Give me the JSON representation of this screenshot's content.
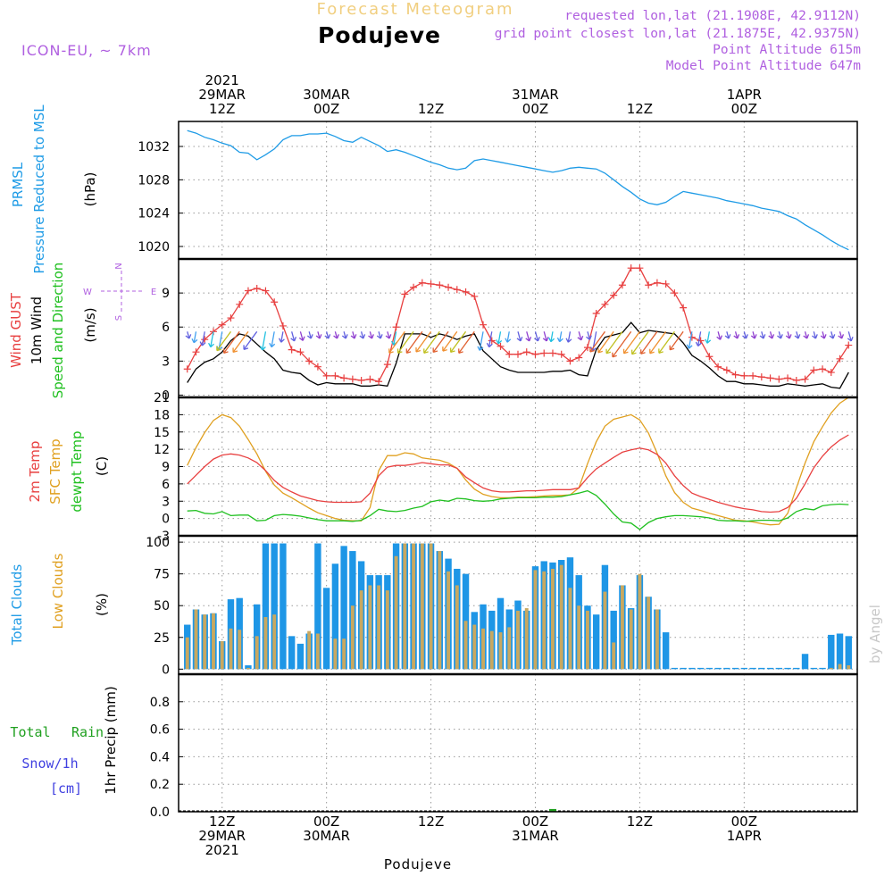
{
  "header": {
    "subtitle": "Forecast Meteogram",
    "title": "Podujeve",
    "model": "ICON-EU, ~ 7km",
    "requested": "requested lon,lat (21.1908E, 42.9112N)",
    "grid_point": "grid point closest lon,lat (21.1875E, 42.9375N)",
    "point_altitude": "Point Altitude 615m",
    "model_altitude": "Model Point Altitude 647m",
    "watermark": "by Angel",
    "footer": "Podujeve"
  },
  "time_axis": {
    "top_labels": [
      {
        "hour": 12,
        "lines": [
          "2021",
          "29MAR",
          "12Z"
        ]
      },
      {
        "hour": 24,
        "lines": [
          "30MAR",
          "00Z"
        ]
      },
      {
        "hour": 36,
        "lines": [
          "12Z"
        ]
      },
      {
        "hour": 48,
        "lines": [
          "31MAR",
          "00Z"
        ]
      },
      {
        "hour": 60,
        "lines": [
          "12Z"
        ]
      },
      {
        "hour": 72,
        "lines": [
          "1APR",
          "00Z"
        ]
      }
    ],
    "bottom_labels": [
      {
        "hour": 12,
        "lines": [
          "12Z",
          "29MAR",
          "2021"
        ]
      },
      {
        "hour": 24,
        "lines": [
          "00Z",
          "30MAR"
        ]
      },
      {
        "hour": 36,
        "lines": [
          "12Z"
        ]
      },
      {
        "hour": 48,
        "lines": [
          "00Z",
          "31MAR"
        ]
      },
      {
        "hour": 60,
        "lines": [
          "12Z"
        ]
      },
      {
        "hour": 72,
        "lines": [
          "00Z",
          "1APR"
        ]
      }
    ]
  },
  "panels": {
    "pressure": {
      "label_lines": [
        "PRMSL",
        "Pressure Reduced to MSL"
      ],
      "unit": "(hPa)"
    },
    "wind": {
      "label_lines": [
        "Wind GUST",
        "10m Wind",
        "Speed and Direction"
      ],
      "unit": "(m/s)",
      "compass": [
        "N",
        "W",
        "E",
        "S"
      ]
    },
    "temp": {
      "label_lines": [
        "2m Temp",
        "SFC Temp",
        "dewpt Temp"
      ],
      "unit": "(C)"
    },
    "clouds": {
      "label_lines": [
        "Total Clouds",
        "Low Clouds"
      ],
      "unit": "(%)"
    },
    "precip": {
      "label_lines": [
        "Total",
        "Rain",
        "Snow/1h",
        "[cm]"
      ],
      "unit": "1hr Precip (mm)"
    }
  },
  "colors": {
    "pressure": "#1e9be6",
    "gust": "#e84040",
    "wind": "#000000",
    "temp2m": "#e84040",
    "sfc": "#e0a020",
    "dewpt": "#20c020",
    "total_clouds": "#1e96e6",
    "low_clouds": "#c8a860",
    "rain": "#20a020",
    "snow": "#4040e0",
    "compass": "#b060e0",
    "header_meta": "#b060e0"
  },
  "chart_data": [
    {
      "type": "line",
      "name": "PRMSL",
      "x_unit": "hours from 00Z 29MAR2021",
      "ylim": [
        1018.5,
        1035
      ],
      "yticks": [
        1020,
        1024,
        1028,
        1032
      ],
      "x": [
        8,
        9,
        10,
        11,
        12,
        13,
        14,
        15,
        16,
        17,
        18,
        19,
        20,
        21,
        22,
        23,
        24,
        25,
        26,
        27,
        28,
        29,
        30,
        31,
        32,
        33,
        34,
        35,
        36,
        37,
        38,
        39,
        40,
        41,
        42,
        43,
        44,
        45,
        46,
        47,
        48,
        49,
        50,
        51,
        52,
        53,
        54,
        55,
        56,
        57,
        58,
        59,
        60,
        61,
        62,
        63,
        64,
        65,
        66,
        67,
        68,
        69,
        70,
        71,
        72,
        73,
        74,
        75,
        76,
        77,
        78,
        79,
        80,
        81,
        82,
        83,
        84
      ],
      "values": [
        1033.9,
        1033.6,
        1033.1,
        1032.8,
        1032.4,
        1032.1,
        1031.3,
        1031.2,
        1030.4,
        1031.0,
        1031.7,
        1032.8,
        1033.3,
        1033.3,
        1033.5,
        1033.5,
        1033.6,
        1033.2,
        1032.7,
        1032.5,
        1033.1,
        1032.6,
        1032.1,
        1031.4,
        1031.6,
        1031.3,
        1030.9,
        1030.5,
        1030.1,
        1029.8,
        1029.4,
        1029.2,
        1029.4,
        1030.3,
        1030.5,
        1030.3,
        1030.1,
        1029.9,
        1029.7,
        1029.5,
        1029.3,
        1029.1,
        1028.9,
        1029.1,
        1029.4,
        1029.5,
        1029.4,
        1029.3,
        1028.8,
        1028.0,
        1027.2,
        1026.5,
        1025.7,
        1025.2,
        1025.0,
        1025.3,
        1026.0,
        1026.6,
        1026.4,
        1026.2,
        1026.0,
        1025.8,
        1025.5,
        1025.3,
        1025.1,
        1024.9,
        1024.6,
        1024.4,
        1024.2,
        1023.7,
        1023.3,
        1022.6,
        1022.0,
        1021.4,
        1020.7,
        1020.1,
        1019.6
      ]
    },
    {
      "type": "line",
      "name": "Wind",
      "x_unit": "hours from 00Z 29MAR2021",
      "ylim": [
        -0.2,
        12
      ],
      "yticks": [
        0,
        3,
        6,
        9
      ],
      "x": [
        8,
        9,
        10,
        11,
        12,
        13,
        14,
        15,
        16,
        17,
        18,
        19,
        20,
        21,
        22,
        23,
        24,
        25,
        26,
        27,
        28,
        29,
        30,
        31,
        32,
        33,
        34,
        35,
        36,
        37,
        38,
        39,
        40,
        41,
        42,
        43,
        44,
        45,
        46,
        47,
        48,
        49,
        50,
        51,
        52,
        53,
        54,
        55,
        56,
        57,
        58,
        59,
        60,
        61,
        62,
        63,
        64,
        65,
        66,
        67,
        68,
        69,
        70,
        71,
        72,
        73,
        74,
        75,
        76,
        77,
        78,
        79,
        80,
        81,
        82,
        83,
        84
      ],
      "series": [
        {
          "name": "Wind GUST",
          "values": [
            2.3,
            3.8,
            4.9,
            5.6,
            6.2,
            6.8,
            8.0,
            9.2,
            9.4,
            9.2,
            8.2,
            6.1,
            4.0,
            3.8,
            3.0,
            2.5,
            1.7,
            1.7,
            1.5,
            1.4,
            1.3,
            1.4,
            1.2,
            2.7,
            6.0,
            8.9,
            9.5,
            9.9,
            9.8,
            9.7,
            9.5,
            9.3,
            9.1,
            8.7,
            6.2,
            4.8,
            4.3,
            3.6,
            3.6,
            3.8,
            3.6,
            3.7,
            3.7,
            3.6,
            3.0,
            3.3,
            4.2,
            7.2,
            8.0,
            8.8,
            9.7,
            11.2,
            11.2,
            9.7,
            9.9,
            9.8,
            9.0,
            7.7,
            5.1,
            4.8,
            3.4,
            2.5,
            2.2,
            1.8,
            1.7,
            1.7,
            1.6,
            1.5,
            1.4,
            1.5,
            1.3,
            1.4,
            2.2,
            2.3,
            2.0,
            3.2,
            4.4
          ]
        },
        {
          "name": "10m Wind",
          "values": [
            1.1,
            2.3,
            2.9,
            3.2,
            3.8,
            4.8,
            5.4,
            5.2,
            4.5,
            3.8,
            3.2,
            2.2,
            2.0,
            1.9,
            1.3,
            0.9,
            1.1,
            1.0,
            1.0,
            1.0,
            0.8,
            0.8,
            0.9,
            0.8,
            2.8,
            5.4,
            5.4,
            5.4,
            5.1,
            5.4,
            5.2,
            4.9,
            5.2,
            5.4,
            3.9,
            3.2,
            2.5,
            2.2,
            2.0,
            2.0,
            2.0,
            2.0,
            2.1,
            2.1,
            2.2,
            1.8,
            1.7,
            4.0,
            5.1,
            5.3,
            5.5,
            6.4,
            5.5,
            5.7,
            5.6,
            5.5,
            5.4,
            4.6,
            3.5,
            3.0,
            2.4,
            1.7,
            1.2,
            1.2,
            1.0,
            1.0,
            0.9,
            0.8,
            0.8,
            1.0,
            0.9,
            0.8,
            0.9,
            1.0,
            0.7,
            0.6,
            2.0
          ]
        }
      ]
    },
    {
      "type": "line",
      "name": "Temperature",
      "x_unit": "hours from 00Z 29MAR2021",
      "ylim": [
        -3,
        21
      ],
      "yticks": [
        -3,
        0,
        3,
        6,
        9,
        12,
        15,
        18,
        21
      ],
      "x": [
        8,
        9,
        10,
        11,
        12,
        13,
        14,
        15,
        16,
        17,
        18,
        19,
        20,
        21,
        22,
        23,
        24,
        25,
        26,
        27,
        28,
        29,
        30,
        31,
        32,
        33,
        34,
        35,
        36,
        37,
        38,
        39,
        40,
        41,
        42,
        43,
        44,
        45,
        46,
        47,
        48,
        49,
        50,
        51,
        52,
        53,
        54,
        55,
        56,
        57,
        58,
        59,
        60,
        61,
        62,
        63,
        64,
        65,
        66,
        67,
        68,
        69,
        70,
        71,
        72,
        73,
        74,
        75,
        76,
        77,
        78,
        79,
        80,
        81,
        82,
        83,
        84
      ],
      "series": [
        {
          "name": "2m Temp",
          "values": [
            6.0,
            7.5,
            9.0,
            10.3,
            11.0,
            11.2,
            11.0,
            10.5,
            9.7,
            8.3,
            6.6,
            5.4,
            4.6,
            3.9,
            3.5,
            3.1,
            2.9,
            2.8,
            2.8,
            2.8,
            2.9,
            4.4,
            7.4,
            8.9,
            9.2,
            9.2,
            9.4,
            9.7,
            9.5,
            9.3,
            9.3,
            8.7,
            7.2,
            6.2,
            5.3,
            4.8,
            4.6,
            4.6,
            4.7,
            4.8,
            4.8,
            4.9,
            5.0,
            5.0,
            5.0,
            5.3,
            7.1,
            8.6,
            9.6,
            10.6,
            11.5,
            11.9,
            12.2,
            11.9,
            11.1,
            9.6,
            7.4,
            5.7,
            4.4,
            3.8,
            3.3,
            2.8,
            2.4,
            2.0,
            1.7,
            1.5,
            1.2,
            1.1,
            1.2,
            1.9,
            3.5,
            6.0,
            8.8,
            10.8,
            12.4,
            13.6,
            14.5
          ]
        },
        {
          "name": "SFC Temp",
          "values": [
            9.2,
            12.3,
            14.9,
            17.0,
            18.0,
            17.5,
            16.0,
            13.7,
            11.2,
            8.2,
            5.8,
            4.4,
            3.6,
            2.7,
            1.8,
            1.0,
            0.5,
            0.0,
            -0.3,
            -0.4,
            -0.4,
            1.9,
            8.3,
            10.9,
            10.9,
            11.4,
            11.2,
            10.5,
            10.3,
            10.1,
            9.6,
            8.7,
            6.7,
            5.1,
            4.2,
            3.8,
            3.6,
            3.6,
            3.7,
            3.7,
            3.8,
            3.9,
            4.0,
            4.0,
            4.1,
            5.3,
            9.5,
            13.3,
            16.0,
            17.2,
            17.6,
            18.0,
            17.1,
            14.8,
            11.3,
            7.4,
            4.5,
            2.8,
            1.8,
            1.4,
            0.9,
            0.5,
            0.1,
            -0.3,
            -0.4,
            -0.6,
            -0.9,
            -1.1,
            -1.0,
            0.9,
            5.3,
            9.6,
            13.3,
            15.9,
            18.3,
            20.0,
            21.0
          ]
        },
        {
          "name": "dewpt Temp",
          "values": [
            1.3,
            1.4,
            0.9,
            0.8,
            1.2,
            0.5,
            0.6,
            0.6,
            -0.4,
            -0.3,
            0.5,
            0.7,
            0.6,
            0.4,
            0.1,
            -0.2,
            -0.4,
            -0.4,
            -0.4,
            -0.5,
            -0.3,
            0.5,
            1.6,
            1.3,
            1.2,
            1.4,
            1.8,
            2.1,
            2.9,
            3.2,
            3.0,
            3.5,
            3.4,
            3.1,
            3.0,
            3.1,
            3.4,
            3.5,
            3.6,
            3.6,
            3.6,
            3.7,
            3.7,
            3.8,
            4.1,
            4.4,
            4.8,
            4.0,
            2.5,
            0.8,
            -0.6,
            -0.8,
            -1.9,
            -0.7,
            0.0,
            0.3,
            0.5,
            0.5,
            0.4,
            0.3,
            0.1,
            -0.3,
            -0.4,
            -0.4,
            -0.5,
            -0.4,
            -0.3,
            -0.3,
            -0.4,
            0.1,
            1.2,
            1.7,
            1.5,
            2.2,
            2.4,
            2.5,
            2.4
          ]
        }
      ]
    },
    {
      "type": "bar",
      "name": "Clouds",
      "x_unit": "hours from 00Z 29MAR2021",
      "ylim": [
        -4,
        105
      ],
      "yticks": [
        0,
        25,
        50,
        75,
        100
      ],
      "x": [
        8,
        9,
        10,
        11,
        12,
        13,
        14,
        15,
        16,
        17,
        18,
        19,
        20,
        21,
        22,
        23,
        24,
        25,
        26,
        27,
        28,
        29,
        30,
        31,
        32,
        33,
        34,
        35,
        36,
        37,
        38,
        39,
        40,
        41,
        42,
        43,
        44,
        45,
        46,
        47,
        48,
        49,
        50,
        51,
        52,
        53,
        54,
        55,
        56,
        57,
        58,
        59,
        60,
        61,
        62,
        63,
        64,
        65,
        66,
        67,
        68,
        69,
        70,
        71,
        72,
        73,
        74,
        75,
        76,
        77,
        78,
        79,
        80,
        81,
        82,
        83,
        84
      ],
      "series": [
        {
          "name": "Total Clouds",
          "values": [
            35,
            47,
            43,
            44,
            22,
            55,
            56,
            3,
            51,
            99,
            99,
            99,
            26,
            20,
            28,
            99,
            64,
            83,
            97,
            93,
            85,
            74,
            74,
            74,
            99,
            99,
            99,
            99,
            99,
            93,
            87,
            79,
            75,
            45,
            51,
            46,
            56,
            47,
            54,
            46,
            81,
            85,
            84,
            86,
            88,
            74,
            50,
            43,
            82,
            46,
            66,
            48,
            74,
            57,
            47,
            29,
            1,
            1,
            1,
            1,
            1,
            1,
            1,
            1,
            1,
            1,
            1,
            1,
            1,
            1,
            1,
            12,
            1,
            1,
            27,
            28,
            26
          ]
        },
        {
          "name": "Low Clouds",
          "values": [
            25,
            47,
            43,
            44,
            22,
            32,
            31,
            1,
            26,
            41,
            43,
            0,
            0,
            0,
            30,
            28,
            0,
            24,
            24,
            50,
            62,
            66,
            66,
            62,
            89,
            99,
            99,
            99,
            99,
            93,
            77,
            66,
            38,
            35,
            32,
            30,
            29,
            33,
            46,
            48,
            78,
            77,
            79,
            82,
            64,
            50,
            46,
            0,
            61,
            21,
            66,
            47,
            75,
            57,
            47,
            0,
            0,
            0,
            0,
            0,
            0,
            0,
            0,
            0,
            0,
            0,
            0,
            0,
            0,
            0,
            0,
            0,
            0,
            0,
            1,
            4,
            3
          ]
        }
      ]
    },
    {
      "type": "bar",
      "name": "1hr Precip",
      "x_unit": "hours from 00Z 29MAR2021",
      "ylim": [
        0,
        1.0
      ],
      "yticks": [
        0,
        0.2,
        0.4,
        0.6,
        0.8
      ],
      "x": [
        50
      ],
      "values": [
        0.02
      ]
    }
  ]
}
